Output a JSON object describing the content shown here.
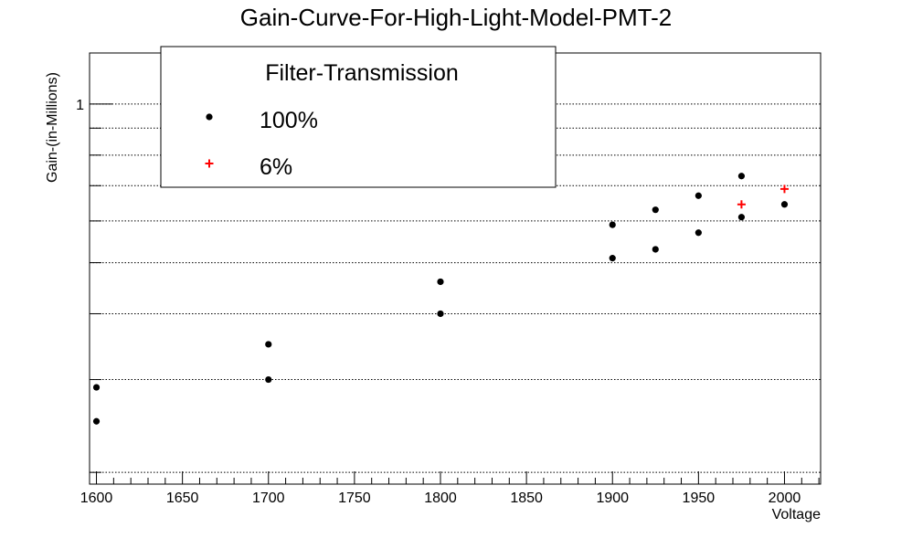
{
  "chart_data": {
    "type": "scatter",
    "title": "Gain-Curve-For-High-Light-Model-PMT-2",
    "xlabel": "Voltage",
    "ylabel": "Gain-(in-Millions)",
    "x_ticks": [
      "1600",
      "1650",
      "1700",
      "1750",
      "1800",
      "1850",
      "1900",
      "1950",
      "2000"
    ],
    "y_ticks": [
      "1"
    ],
    "xlim": [
      1596,
      2021
    ],
    "ylim": [
      0.19,
      1.25
    ],
    "y_scale": "log",
    "grid": "horizontal dotted",
    "legend": {
      "title": "Filter-Transmission",
      "placement": "top-left"
    },
    "series": [
      {
        "name": "100%",
        "color": "#000000",
        "marker": "dot",
        "points": [
          {
            "x": 1600,
            "y": 0.29
          },
          {
            "x": 1600,
            "y": 0.25
          },
          {
            "x": 1700,
            "y": 0.35
          },
          {
            "x": 1700,
            "y": 0.3
          },
          {
            "x": 1800,
            "y": 0.46
          },
          {
            "x": 1800,
            "y": 0.4
          },
          {
            "x": 1900,
            "y": 0.59
          },
          {
            "x": 1900,
            "y": 0.51
          },
          {
            "x": 1925,
            "y": 0.63
          },
          {
            "x": 1925,
            "y": 0.53
          },
          {
            "x": 1950,
            "y": 0.67
          },
          {
            "x": 1950,
            "y": 0.57
          },
          {
            "x": 1975,
            "y": 0.73
          },
          {
            "x": 1975,
            "y": 0.61
          },
          {
            "x": 2000,
            "y": 0.645
          }
        ]
      },
      {
        "name": "6%",
        "color": "#ff0000",
        "marker": "plus",
        "points": [
          {
            "x": 1975,
            "y": 0.645
          },
          {
            "x": 2000,
            "y": 0.69
          }
        ]
      }
    ]
  }
}
